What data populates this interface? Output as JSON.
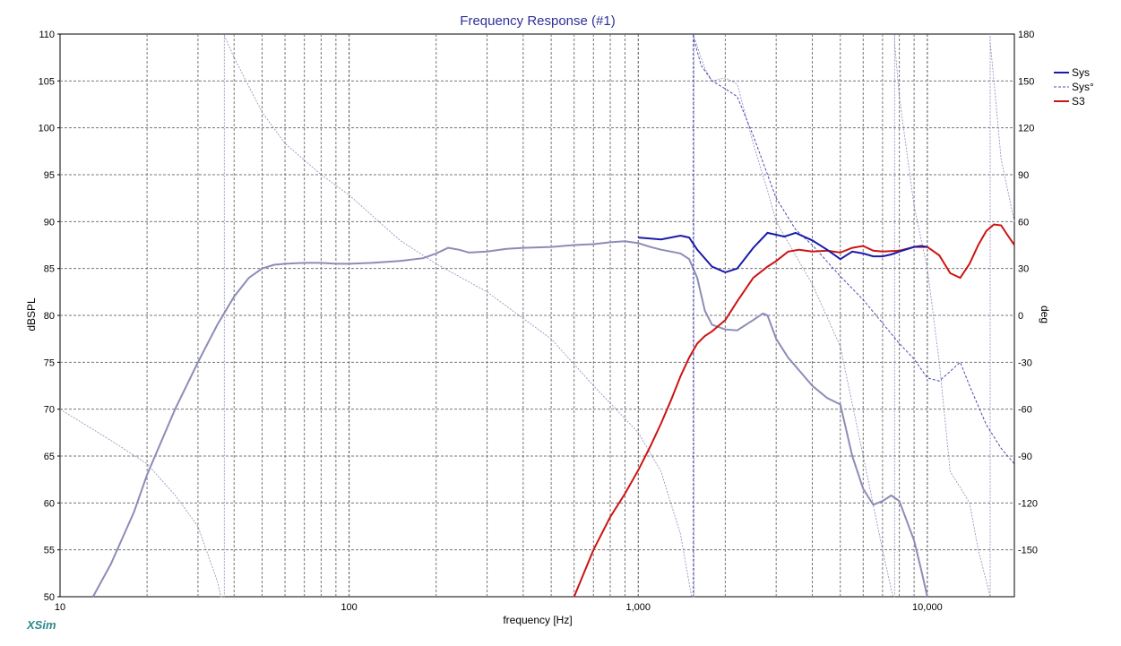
{
  "chart_data": {
    "type": "line",
    "title": "Frequency Response (#1)",
    "xlabel": "frequency [Hz]",
    "ylabel": "dBSPL",
    "y2label": "deg",
    "x_scale": "log",
    "xlim": [
      10,
      20000
    ],
    "ylim": [
      50,
      110
    ],
    "y2lim": [
      -180,
      180
    ],
    "x_tick_values": [
      10,
      100,
      1000,
      10000
    ],
    "x_tick_labels": [
      "10",
      "100",
      "1,000",
      "10,000"
    ],
    "y_tick_labels": [
      "50",
      "55",
      "60",
      "65",
      "70",
      "75",
      "80",
      "85",
      "90",
      "95",
      "100",
      "105",
      "110"
    ],
    "y2_tick_labels": [
      "-150",
      "-120",
      "-90",
      "-60",
      "-30",
      "0",
      "30",
      "60",
      "90",
      "120",
      "150",
      "180"
    ],
    "grid": true,
    "legend_position": "right",
    "brand": "XSim",
    "series": [
      {
        "name": "Sys",
        "color": "#1a1aa8",
        "style": "solid",
        "axis": "left",
        "points": [
          [
            1000,
            88.3
          ],
          [
            1200,
            88.1
          ],
          [
            1400,
            88.5
          ],
          [
            1500,
            88.3
          ],
          [
            1600,
            87.0
          ],
          [
            1800,
            85.2
          ],
          [
            2000,
            84.6
          ],
          [
            2200,
            85.0
          ],
          [
            2500,
            87.2
          ],
          [
            2800,
            88.8
          ],
          [
            3000,
            88.6
          ],
          [
            3200,
            88.4
          ],
          [
            3500,
            88.8
          ],
          [
            4000,
            88.0
          ],
          [
            4500,
            87.0
          ],
          [
            5000,
            86.0
          ],
          [
            5500,
            86.8
          ],
          [
            6000,
            86.6
          ],
          [
            6500,
            86.3
          ],
          [
            7000,
            86.3
          ],
          [
            7500,
            86.5
          ],
          [
            8000,
            86.8
          ],
          [
            9000,
            87.3
          ],
          [
            9500,
            87.4
          ],
          [
            10000,
            87.3
          ]
        ]
      },
      {
        "name": "Sys°",
        "color": "#4a4ab4",
        "style": "dashed",
        "axis": "right",
        "points": [
          [
            1540,
            -180
          ],
          [
            1550,
            178
          ],
          [
            1650,
            160
          ],
          [
            1800,
            150
          ],
          [
            2000,
            145
          ],
          [
            2200,
            140
          ],
          [
            2500,
            115
          ],
          [
            2800,
            90
          ],
          [
            3000,
            75
          ],
          [
            3500,
            55
          ],
          [
            4000,
            45
          ],
          [
            5000,
            25
          ],
          [
            6000,
            10
          ],
          [
            7000,
            -5
          ],
          [
            8000,
            -18
          ],
          [
            9000,
            -28
          ],
          [
            10000,
            -40
          ],
          [
            11000,
            -42
          ],
          [
            13000,
            -30
          ],
          [
            14000,
            -45
          ],
          [
            16000,
            -70
          ],
          [
            18000,
            -85
          ],
          [
            20000,
            -95
          ]
        ]
      },
      {
        "name": "S3",
        "color": "#cc1414",
        "style": "solid",
        "axis": "left",
        "points": [
          [
            600,
            50
          ],
          [
            700,
            55
          ],
          [
            800,
            58.5
          ],
          [
            900,
            61
          ],
          [
            1000,
            63.5
          ],
          [
            1100,
            66
          ],
          [
            1200,
            68.5
          ],
          [
            1300,
            71
          ],
          [
            1400,
            73.5
          ],
          [
            1500,
            75.5
          ],
          [
            1600,
            77
          ],
          [
            1700,
            77.8
          ],
          [
            1800,
            78.3
          ],
          [
            2000,
            79.5
          ],
          [
            2200,
            81.5
          ],
          [
            2500,
            84
          ],
          [
            2800,
            85.2
          ],
          [
            3000,
            85.8
          ],
          [
            3300,
            86.8
          ],
          [
            3600,
            87
          ],
          [
            4000,
            86.8
          ],
          [
            4500,
            86.9
          ],
          [
            5000,
            86.7
          ],
          [
            5500,
            87.2
          ],
          [
            6000,
            87.4
          ],
          [
            6500,
            86.9
          ],
          [
            7000,
            86.8
          ],
          [
            8000,
            86.9
          ],
          [
            9000,
            87.3
          ],
          [
            10000,
            87.3
          ],
          [
            11000,
            86.4
          ],
          [
            12000,
            84.5
          ],
          [
            13000,
            84.0
          ],
          [
            14000,
            85.5
          ],
          [
            15000,
            87.5
          ],
          [
            16000,
            89.0
          ],
          [
            17000,
            89.7
          ],
          [
            18000,
            89.6
          ],
          [
            19000,
            88.5
          ],
          [
            20000,
            87.5
          ]
        ]
      },
      {
        "name": "",
        "color": "#8c8cb8",
        "style": "solid",
        "axis": "left",
        "points": [
          [
            13,
            50
          ],
          [
            15,
            53.5
          ],
          [
            18,
            59
          ],
          [
            20,
            63
          ],
          [
            25,
            70
          ],
          [
            30,
            75
          ],
          [
            35,
            79
          ],
          [
            40,
            82
          ],
          [
            45,
            84
          ],
          [
            50,
            85
          ],
          [
            55,
            85.4
          ],
          [
            60,
            85.5
          ],
          [
            70,
            85.6
          ],
          [
            80,
            85.6
          ],
          [
            90,
            85.5
          ],
          [
            100,
            85.5
          ],
          [
            120,
            85.6
          ],
          [
            150,
            85.8
          ],
          [
            180,
            86.1
          ],
          [
            200,
            86.6
          ],
          [
            220,
            87.2
          ],
          [
            240,
            87.0
          ],
          [
            260,
            86.7
          ],
          [
            300,
            86.8
          ],
          [
            350,
            87.1
          ],
          [
            400,
            87.2
          ],
          [
            500,
            87.3
          ],
          [
            600,
            87.5
          ],
          [
            700,
            87.6
          ],
          [
            800,
            87.8
          ],
          [
            900,
            87.9
          ],
          [
            1000,
            87.7
          ],
          [
            1100,
            87.3
          ],
          [
            1200,
            87.0
          ],
          [
            1300,
            86.8
          ],
          [
            1400,
            86.6
          ],
          [
            1500,
            86.0
          ],
          [
            1600,
            84.0
          ],
          [
            1700,
            80.5
          ],
          [
            1800,
            79
          ],
          [
            2000,
            78.5
          ],
          [
            2200,
            78.4
          ],
          [
            2500,
            79.5
          ],
          [
            2700,
            80.2
          ],
          [
            2800,
            80.0
          ],
          [
            3000,
            77.5
          ],
          [
            3300,
            75.5
          ],
          [
            4000,
            72.5
          ],
          [
            4500,
            71.2
          ],
          [
            5000,
            70.5
          ],
          [
            5500,
            65
          ],
          [
            6000,
            61.5
          ],
          [
            6500,
            59.8
          ],
          [
            7000,
            60.2
          ],
          [
            7500,
            60.8
          ],
          [
            8000,
            60.2
          ],
          [
            9000,
            56
          ],
          [
            9500,
            53
          ],
          [
            10000,
            50
          ]
        ]
      },
      {
        "name": "",
        "color": "#8c8cb8",
        "style": "thin",
        "axis": "right",
        "points": [
          [
            10,
            -60
          ],
          [
            15,
            -80
          ],
          [
            20,
            -95
          ],
          [
            25,
            -115
          ],
          [
            30,
            -135
          ],
          [
            35,
            -170
          ],
          [
            36,
            -180
          ],
          [
            37,
            179
          ],
          [
            40,
            165
          ],
          [
            50,
            130
          ],
          [
            60,
            110
          ],
          [
            80,
            90
          ],
          [
            100,
            77
          ],
          [
            150,
            48
          ],
          [
            200,
            33
          ],
          [
            300,
            15
          ],
          [
            400,
            -2
          ],
          [
            500,
            -15
          ],
          [
            700,
            -45
          ],
          [
            1000,
            -75
          ],
          [
            1200,
            -100
          ],
          [
            1400,
            -140
          ],
          [
            1530,
            -180
          ],
          [
            1560,
            178
          ],
          [
            1700,
            158
          ],
          [
            1800,
            150
          ],
          [
            2000,
            152
          ],
          [
            2200,
            148
          ],
          [
            2500,
            110
          ],
          [
            2800,
            80
          ],
          [
            3000,
            60
          ],
          [
            4000,
            20
          ],
          [
            5000,
            -20
          ],
          [
            6000,
            -90
          ],
          [
            7000,
            -150
          ],
          [
            7600,
            -180
          ],
          [
            7700,
            175
          ],
          [
            8000,
            140
          ],
          [
            9000,
            70
          ],
          [
            10000,
            30
          ],
          [
            11000,
            -30
          ],
          [
            12000,
            -100
          ],
          [
            13000,
            -110
          ],
          [
            14000,
            -120
          ],
          [
            15000,
            -150
          ],
          [
            16000,
            -170
          ],
          [
            16500,
            175
          ],
          [
            17000,
            150
          ],
          [
            18000,
            100
          ],
          [
            20000,
            60
          ]
        ]
      }
    ]
  }
}
